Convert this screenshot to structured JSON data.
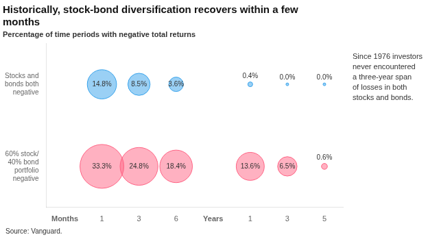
{
  "chart_data": {
    "type": "bubble",
    "title": [
      "Historically, stock-bond diversification recovers within a few",
      "months"
    ],
    "subtitle": "Percentage of time periods with negative total returns",
    "categories": [
      "Months",
      "1",
      "3",
      "6",
      "Years",
      "1",
      "3",
      "5"
    ],
    "series": [
      {
        "name": "Stocks and\nbonds both\nnegative",
        "values": [
          null,
          14.8,
          8.5,
          3.6,
          null,
          0.4,
          0.0,
          0.0
        ],
        "value_labels": [
          null,
          "14.8%",
          "8.5%",
          "3.6%",
          null,
          "0.4%",
          "0.0%",
          "0.0%"
        ]
      },
      {
        "name": "60% stock/\n40% bond\nportfolio\nnegative",
        "values": [
          null,
          33.3,
          24.8,
          18.4,
          null,
          13.6,
          6.5,
          0.6
        ],
        "value_labels": [
          null,
          "33.3%",
          "24.8%",
          "18.4%",
          null,
          "13.6%",
          "6.5%",
          "0.6%"
        ]
      }
    ],
    "data_labels": true,
    "grid": false,
    "annotations": [
      "Since 1976 investors\nnever encountered\na three-year span\nof losses in both\nstocks and bonds."
    ],
    "source": "Source: Vanguard."
  }
}
